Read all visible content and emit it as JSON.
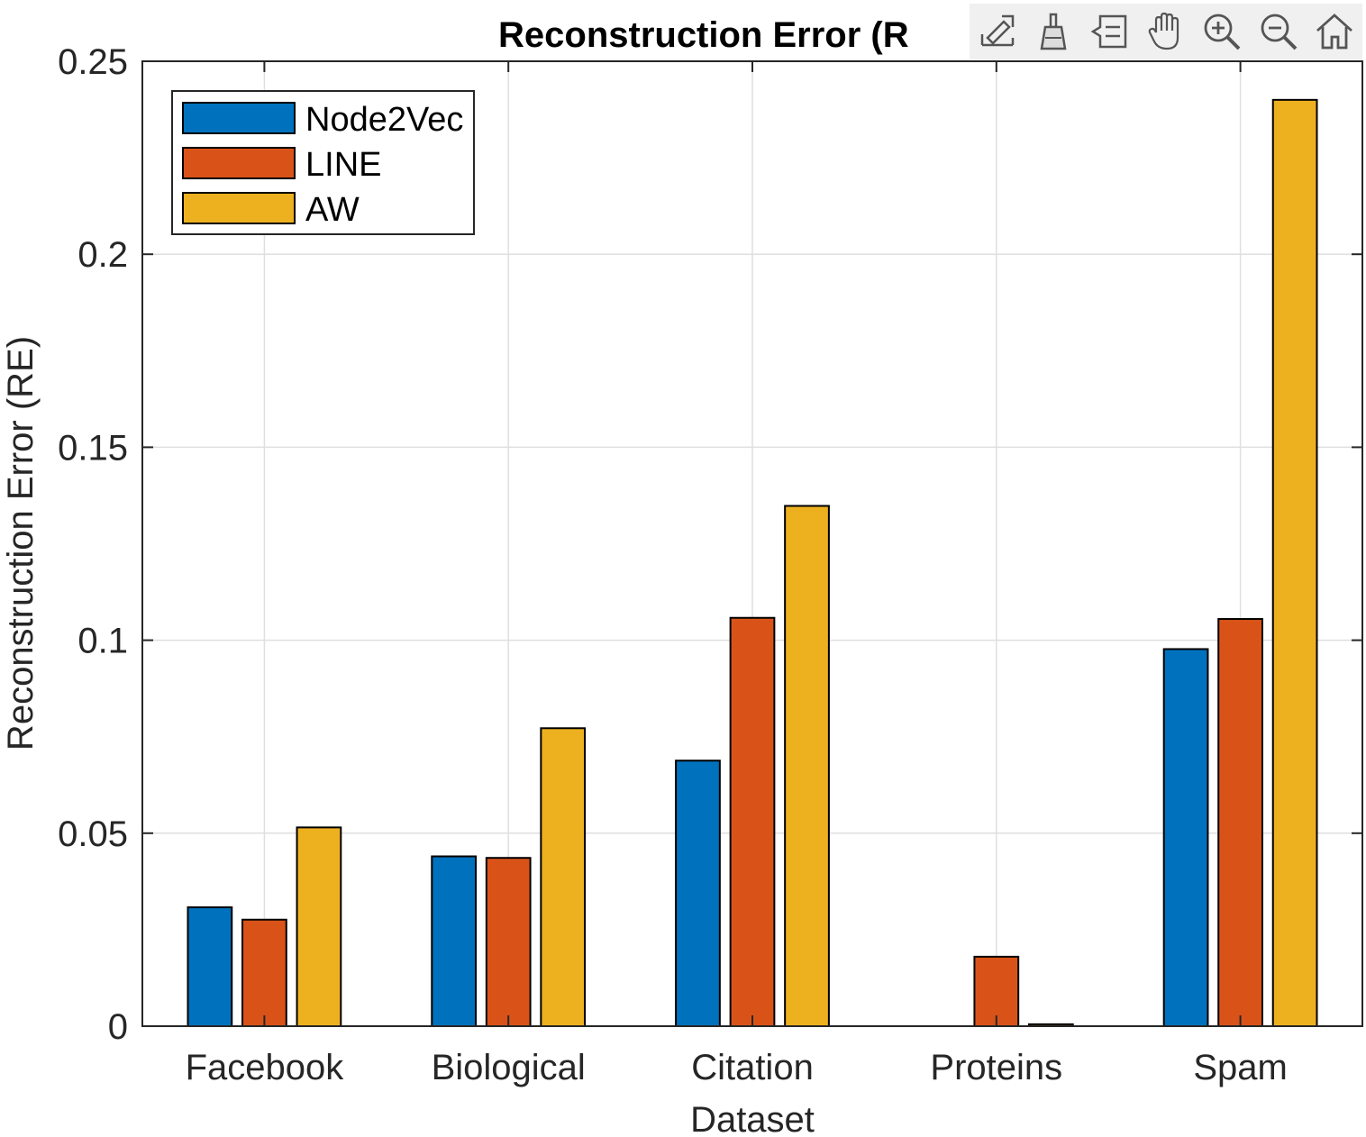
{
  "chart_data": {
    "type": "bar",
    "title": "Reconstruction Error (R",
    "xlabel": "Dataset",
    "ylabel": "Reconstruction Error (RE)",
    "categories": [
      "Facebook",
      "Biological",
      "Citation",
      "Proteins",
      "Spam"
    ],
    "series": [
      {
        "name": "Node2Vec",
        "color": "#0072bd",
        "values": [
          0.0308,
          0.044,
          0.0688,
          0.0,
          0.0977
        ]
      },
      {
        "name": "LINE",
        "color": "#d95319",
        "values": [
          0.0276,
          0.0436,
          0.1058,
          0.018,
          0.1055
        ]
      },
      {
        "name": "AW",
        "color": "#edb120",
        "values": [
          0.0515,
          0.0772,
          0.1348,
          0.0005,
          0.24
        ]
      }
    ],
    "ylim": [
      0,
      0.25
    ],
    "yticks": [
      0,
      0.05,
      0.1,
      0.15,
      0.2,
      0.25
    ],
    "ytick_labels": [
      "0",
      "0.05",
      "0.1",
      "0.15",
      "0.2",
      "0.25"
    ],
    "grid": true,
    "legend_position": "top-left"
  },
  "toolbar": {
    "tools": [
      {
        "name": "export-icon"
      },
      {
        "name": "brush-icon"
      },
      {
        "name": "data-tips-icon"
      },
      {
        "name": "pan-hand-icon"
      },
      {
        "name": "zoom-in-icon"
      },
      {
        "name": "zoom-out-icon"
      },
      {
        "name": "home-icon"
      }
    ]
  }
}
